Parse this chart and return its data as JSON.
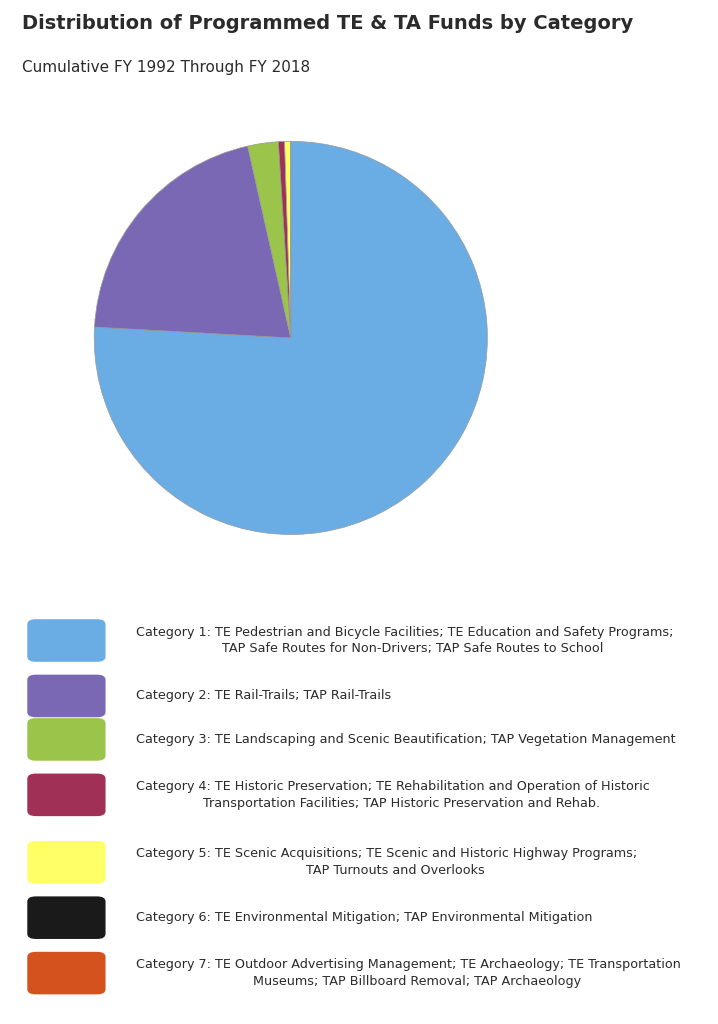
{
  "title": "Distribution of Programmed TE & TA Funds by Category",
  "subtitle": "Cumulative FY 1992 Through FY 2018",
  "title_fontsize": 14,
  "subtitle_fontsize": 11,
  "background_color": "#ffffff",
  "pie_values": [
    75.5,
    20.5,
    2.5,
    0.5,
    0.5,
    0.0,
    0.0
  ],
  "pie_colors": [
    "#6aade4",
    "#7b68b5",
    "#9bc44a",
    "#a03055",
    "#ffff66",
    "#1a1a1a",
    "#d4521e"
  ],
  "pie_startangle": 90,
  "categories": [
    "Category 1: TE Pedestrian and Bicycle Facilities; TE Education and Safety Programs;\n    TAP Safe Routes for Non-Drivers; TAP Safe Routes to School",
    "Category 2: TE Rail-Trails; TAP Rail-Trails",
    "Category 3: TE Landscaping and Scenic Beautification; TAP Vegetation Management",
    "Category 4: TE Historic Preservation; TE Rehabilitation and Operation of Historic\n    Transportation Facilities; TAP Historic Preservation and Rehab.",
    "Category 5: TE Scenic Acquisitions; TE Scenic and Historic Highway Programs;\n    TAP Turnouts and Overlooks",
    "Category 6: TE Environmental Mitigation; TAP Environmental Mitigation",
    "Category 7: TE Outdoor Advertising Management; TE Archaeology; TE Transportation\n    Museums; TAP Billboard Removal; TAP Archaeology"
  ],
  "legend_fontsize": 9.2,
  "text_color": "#2b2b2b",
  "edge_color": "#999999"
}
